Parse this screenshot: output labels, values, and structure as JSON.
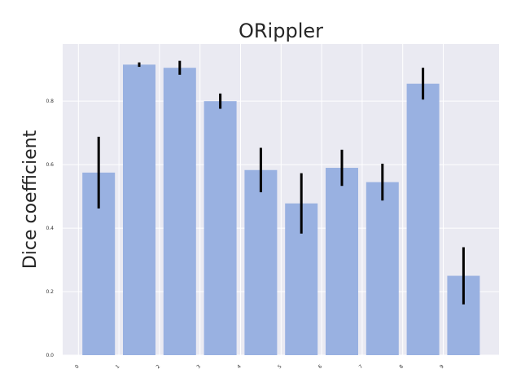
{
  "chart_data": {
    "type": "bar",
    "title": "ORippler",
    "xlabel": "",
    "ylabel": "Dice coefficient",
    "categories": [
      "0",
      "1",
      "2",
      "3",
      "4",
      "5",
      "6",
      "7",
      "8",
      "9"
    ],
    "values": [
      0.575,
      0.915,
      0.905,
      0.8,
      0.583,
      0.478,
      0.59,
      0.545,
      0.855,
      0.25
    ],
    "errors": [
      0.113,
      0.007,
      0.022,
      0.024,
      0.07,
      0.095,
      0.057,
      0.058,
      0.05,
      0.09
    ],
    "ylim": [
      0,
      0.98
    ],
    "yticks": [
      0.0,
      0.2,
      0.4,
      0.6,
      0.8
    ],
    "ytick_labels": [
      "0.0",
      "0.2",
      "0.4",
      "0.6",
      "0.8"
    ],
    "grid": true,
    "colors": {
      "bar": "#99b1e1",
      "error": "#000000",
      "background": "#eaeaf2",
      "grid": "#ffffff"
    }
  }
}
